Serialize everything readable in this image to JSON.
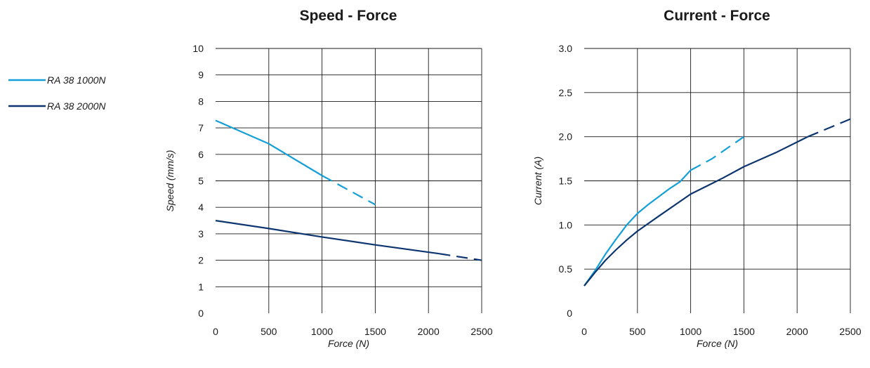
{
  "legend": {
    "items": [
      {
        "label": "RA 38 1000N",
        "color": "#159fd8"
      },
      {
        "label": "RA 38 2000N",
        "color": "#0d3670"
      }
    ]
  },
  "chart_data": [
    {
      "type": "line",
      "title": "Speed - Force",
      "xlabel": "Force (N)",
      "ylabel": "Speed (mm/s)",
      "xlim": [
        0,
        2500
      ],
      "ylim": [
        0,
        10
      ],
      "xticks": [
        "0",
        "500",
        "1000",
        "1500",
        "2000",
        "2500"
      ],
      "yticks": [
        "0",
        "1",
        "2",
        "3",
        "4",
        "5",
        "6",
        "7",
        "8",
        "9",
        "10"
      ],
      "grid": true,
      "series": [
        {
          "name": "RA 38 1000N",
          "color": "#159fd8",
          "solid": [
            [
              0,
              7.28
            ],
            [
              500,
              6.4
            ],
            [
              1000,
              5.2
            ]
          ],
          "dashed": [
            [
              1000,
              5.2
            ],
            [
              1500,
              4.1
            ]
          ]
        },
        {
          "name": "RA 38 2000N",
          "color": "#0d3670",
          "solid": [
            [
              0,
              3.5
            ],
            [
              500,
              3.2
            ],
            [
              1000,
              2.88
            ],
            [
              1500,
              2.58
            ],
            [
              2100,
              2.25
            ]
          ],
          "dashed": [
            [
              2100,
              2.25
            ],
            [
              2500,
              2.0
            ]
          ]
        }
      ]
    },
    {
      "type": "line",
      "title": "Current - Force",
      "xlabel": "Force (N)",
      "ylabel": "Current (A)",
      "xlim": [
        0,
        2500
      ],
      "ylim": [
        0,
        3.0
      ],
      "xticks": [
        "0",
        "500",
        "1000",
        "1500",
        "2000",
        "2500"
      ],
      "yticks": [
        "0",
        "0.5",
        "1.0",
        "1.5",
        "2.0",
        "2.5",
        "3.0"
      ],
      "grid": true,
      "series": [
        {
          "name": "RA 38 1000N",
          "color": "#159fd8",
          "solid": [
            [
              0,
              0.31
            ],
            [
              100,
              0.48
            ],
            [
              200,
              0.67
            ],
            [
              300,
              0.84
            ],
            [
              400,
              1.0
            ],
            [
              500,
              1.13
            ],
            [
              600,
              1.23
            ],
            [
              700,
              1.32
            ],
            [
              800,
              1.41
            ],
            [
              900,
              1.49
            ],
            [
              1000,
              1.62
            ]
          ],
          "dashed": [
            [
              1000,
              1.62
            ],
            [
              1200,
              1.75
            ],
            [
              1500,
              2.0
            ]
          ]
        },
        {
          "name": "RA 38 2000N",
          "color": "#0d3670",
          "solid": [
            [
              0,
              0.31
            ],
            [
              100,
              0.46
            ],
            [
              200,
              0.6
            ],
            [
              300,
              0.72
            ],
            [
              400,
              0.83
            ],
            [
              500,
              0.93
            ],
            [
              700,
              1.1
            ],
            [
              1000,
              1.35
            ],
            [
              1300,
              1.53
            ],
            [
              1500,
              1.66
            ],
            [
              1800,
              1.82
            ],
            [
              2100,
              2.0
            ]
          ],
          "dashed": [
            [
              2100,
              2.0
            ],
            [
              2300,
              2.1
            ],
            [
              2500,
              2.2
            ]
          ]
        }
      ]
    }
  ]
}
